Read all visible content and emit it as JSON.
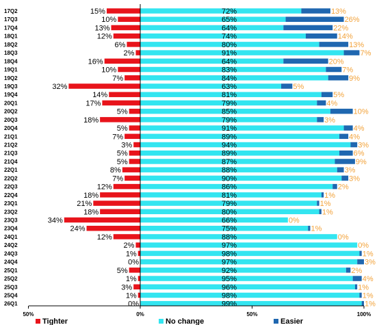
{
  "chart_data": {
    "type": "bar",
    "orientation": "horizontal",
    "stacked": true,
    "categories": [
      "17Q2",
      "17Q3",
      "17Q4",
      "18Q1",
      "18Q2",
      "18Q3",
      "18Q4",
      "19Q1",
      "19Q2",
      "19Q3",
      "19Q4",
      "20Q1",
      "20Q2",
      "20Q3",
      "20Q4",
      "21Q1",
      "21Q2",
      "21Q3",
      "21Q4",
      "22Q1",
      "22Q2",
      "22Q3",
      "22Q4",
      "23Q1",
      "23Q2",
      "23Q3",
      "23Q4",
      "24Q1",
      "24Q2",
      "24Q3",
      "24Q4",
      "25Q1",
      "25Q2",
      "25Q3",
      "25Q4",
      "26Q1"
    ],
    "series": [
      {
        "name": "Tighter",
        "color": "#e8141b",
        "values": [
          15,
          10,
          13,
          12,
          6,
          2,
          16,
          10,
          7,
          32,
          14,
          17,
          5,
          18,
          5,
          7,
          3,
          5,
          5,
          8,
          7,
          12,
          18,
          21,
          18,
          34,
          24,
          12,
          2,
          1,
          0,
          5,
          1,
          3,
          1,
          0
        ],
        "labels": [
          "15%",
          "10%",
          "13%",
          "12%",
          "6%",
          "2%",
          "16%",
          "10%",
          "7%",
          "32%",
          "14%",
          "17%",
          "5%",
          "18%",
          "5%",
          "7%",
          "3%",
          "5%",
          "5%",
          "8%",
          "7%",
          "12%",
          "18%",
          "21%",
          "18%",
          "34%",
          "24%",
          "12%",
          "2%",
          "1%",
          "0%",
          "5%",
          "1%",
          "3%",
          "1%",
          "0%"
        ]
      },
      {
        "name": "No change",
        "color": "#33e5f0",
        "values": [
          72,
          65,
          64,
          74,
          80,
          91,
          64,
          83,
          84,
          63,
          81,
          79,
          85,
          79,
          91,
          89,
          94,
          89,
          87,
          88,
          90,
          86,
          81,
          79,
          80,
          66,
          75,
          88,
          97,
          98,
          97,
          92,
          95,
          96,
          98,
          99
        ],
        "labels": [
          "72%",
          "65%",
          "64%",
          "74%",
          "80%",
          "91%",
          "64%",
          "83%",
          "84%",
          "63%",
          "81%",
          "79%",
          "85%",
          "79%",
          "91%",
          "89%",
          "94%",
          "89%",
          "87%",
          "88%",
          "90%",
          "86%",
          "81%",
          "79%",
          "80%",
          "66%",
          "75%",
          "88%",
          "97%",
          "98%",
          "97%",
          "92%",
          "95%",
          "96%",
          "98%",
          "99%"
        ]
      },
      {
        "name": "Easier",
        "color": "#1f67b0",
        "values": [
          13,
          26,
          22,
          14,
          13,
          7,
          20,
          7,
          9,
          5,
          5,
          4,
          10,
          3,
          4,
          4,
          3,
          6,
          9,
          3,
          3,
          2,
          1,
          1,
          1,
          0,
          1,
          0,
          0,
          1,
          3,
          2,
          4,
          1,
          1,
          1
        ],
        "labels": [
          "13%",
          "26%",
          "22%",
          "14%",
          "13%",
          "7%",
          "20%",
          "7%",
          "9%",
          "5%",
          "5%",
          "4%",
          "10%",
          "3%",
          "4%",
          "4%",
          "3%",
          "6%",
          "9%",
          "3%",
          "3%",
          "2%",
          "1%",
          "1%",
          "1%",
          "0%",
          "1%",
          "0%",
          "0%",
          "1%",
          "3%",
          "2%",
          "4%",
          "1%",
          "1%",
          "1%"
        ]
      }
    ],
    "x_ticks": [
      "50%",
      "0%",
      "50%",
      "100%"
    ],
    "xlim": [
      -50,
      100
    ],
    "legend_position": "bottom",
    "grid": false
  }
}
